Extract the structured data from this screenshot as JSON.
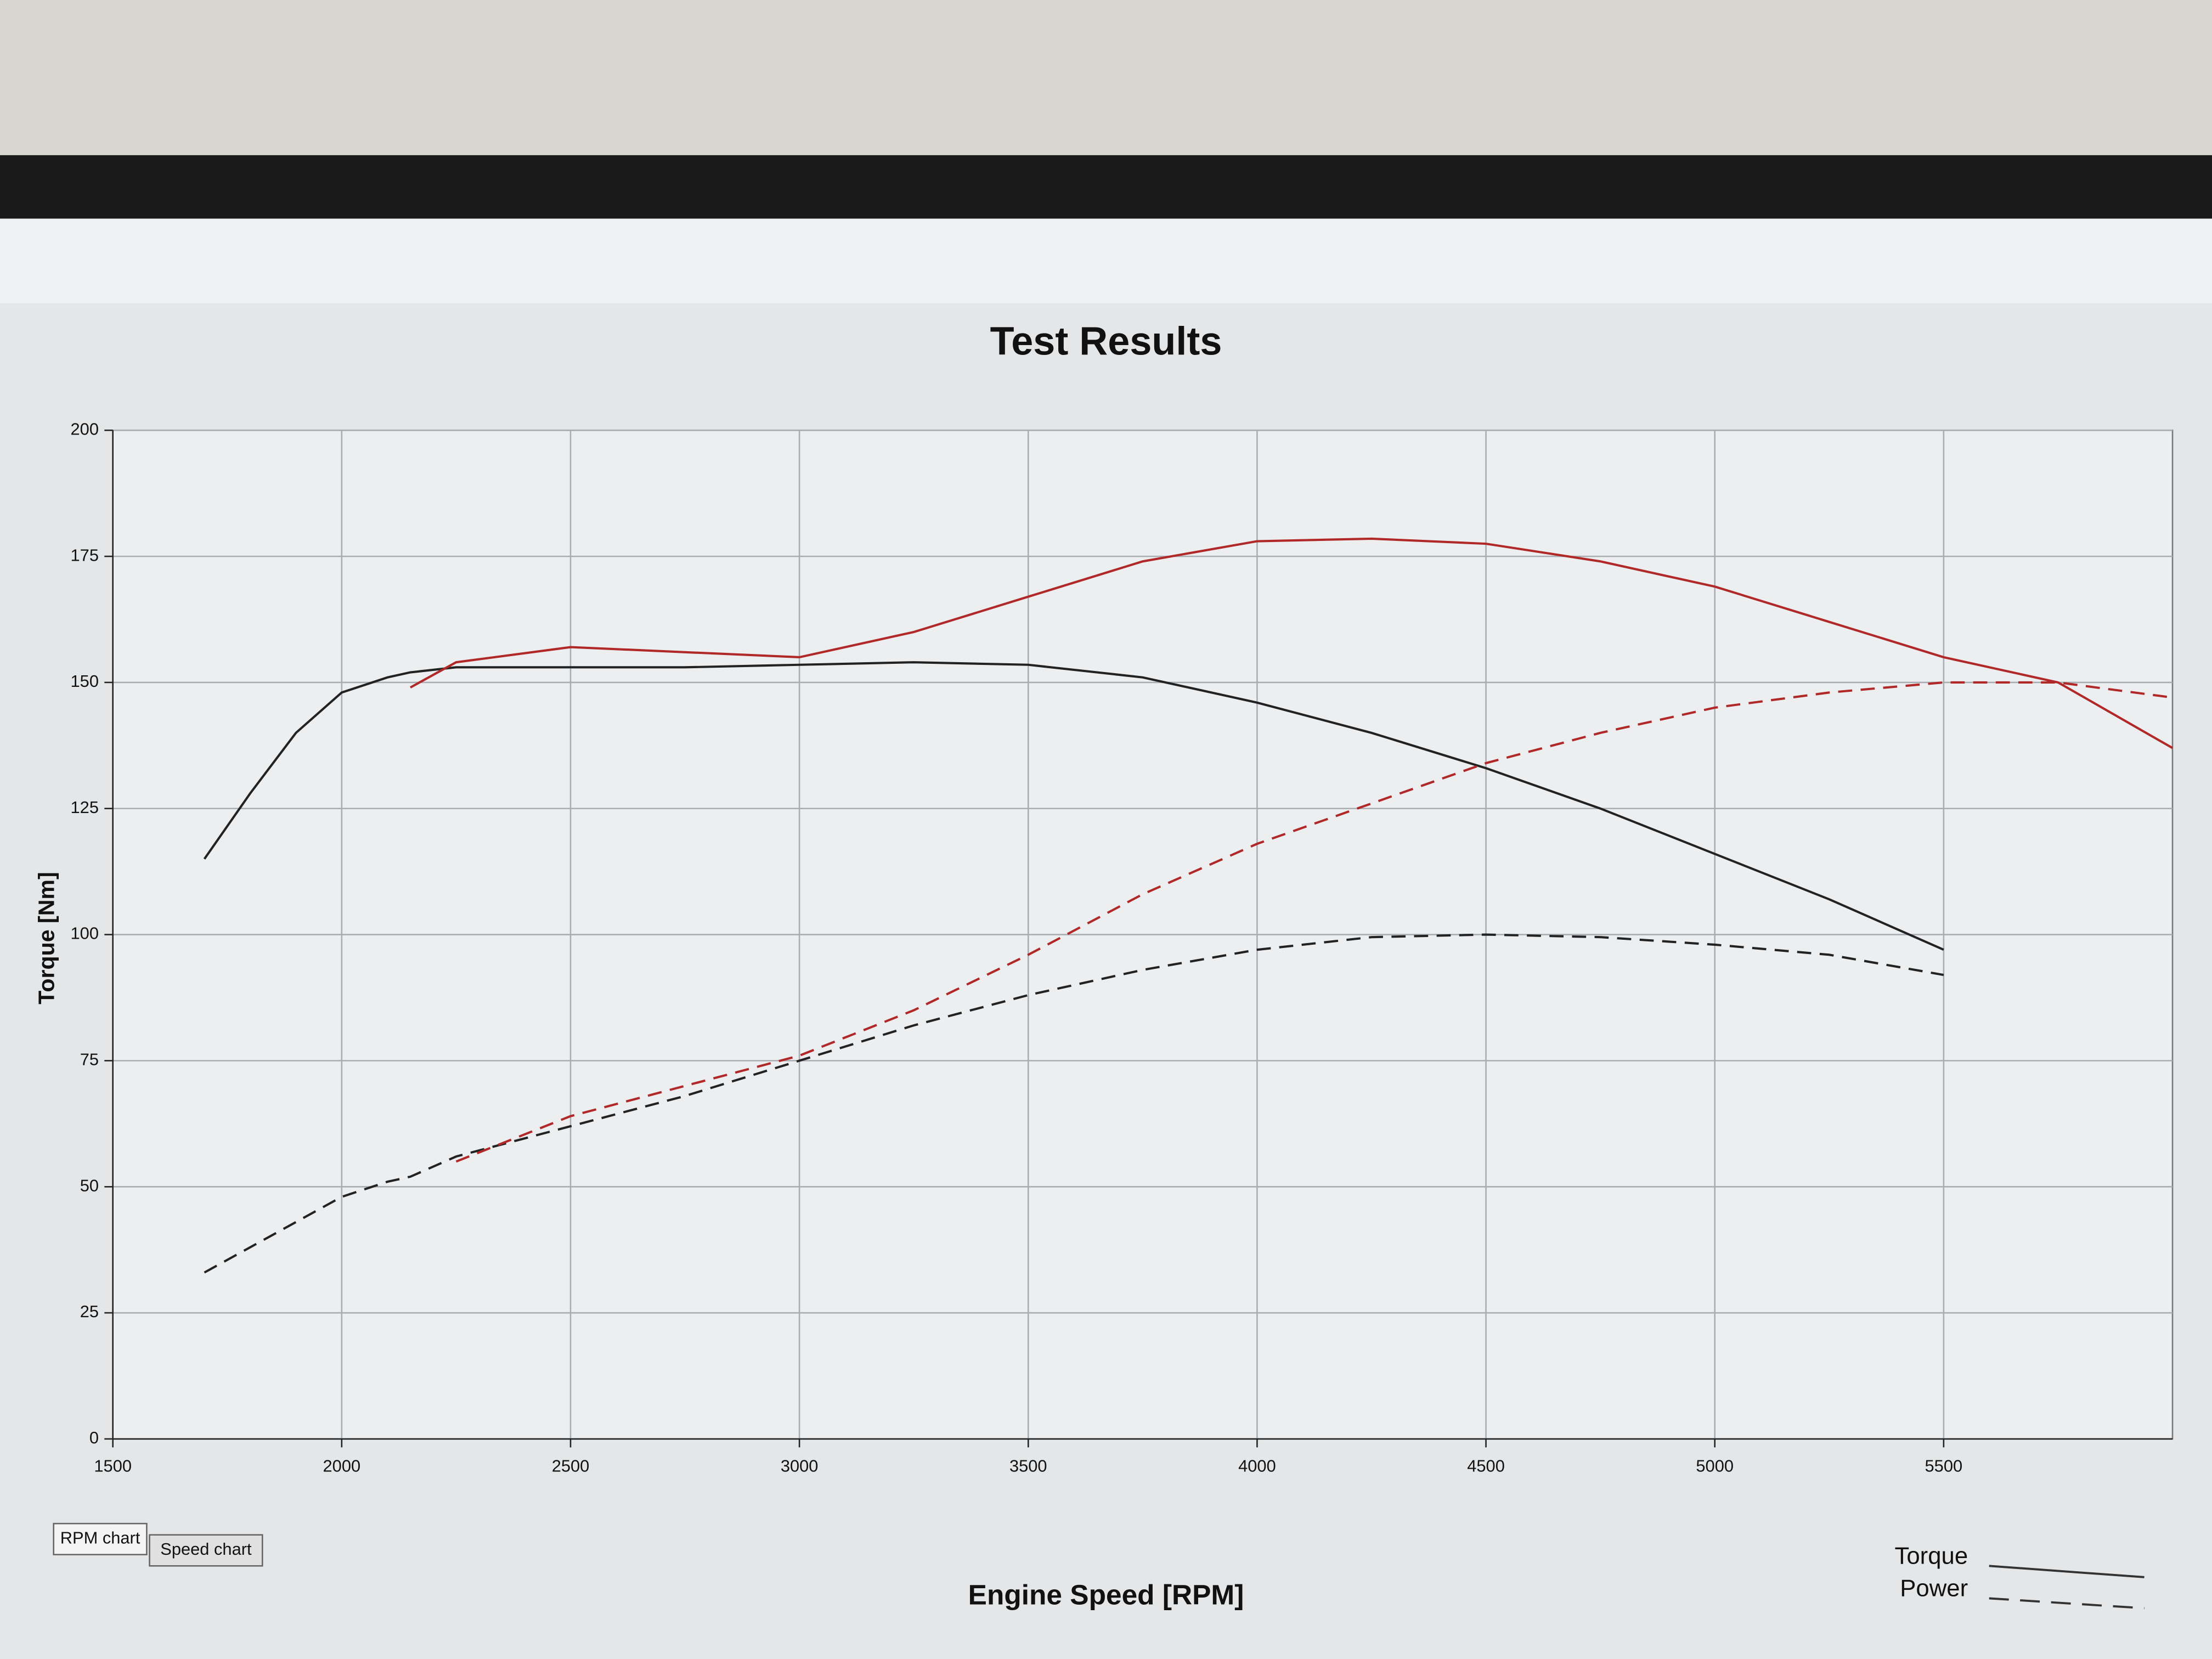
{
  "chart_data": {
    "type": "line",
    "title": "Test Results",
    "x_label": "Engine Speed [RPM]",
    "y_label": "Torque [Nm]",
    "x": [
      1700,
      1800,
      1900,
      2000,
      2100,
      2150,
      2250,
      2500,
      2750,
      3000,
      3250,
      3500,
      3750,
      4000,
      4250,
      4500,
      4750,
      5000,
      5250,
      5500,
      5750,
      6000
    ],
    "series": [
      {
        "color": "#222222",
        "dashed": false,
        "values": [
          115,
          128,
          140,
          148,
          151,
          152,
          153,
          153,
          153,
          153.5,
          154,
          153.5,
          151,
          146,
          140,
          133,
          125,
          116,
          107,
          97,
          null,
          null
        ]
      },
      {
        "color": "#222222",
        "dashed": true,
        "values": [
          33,
          38,
          43,
          48,
          51,
          52,
          56,
          62,
          68,
          75,
          82,
          88,
          93,
          97,
          99.5,
          100,
          99.5,
          98,
          96,
          92,
          null,
          null
        ]
      },
      {
        "color": "#b02828",
        "dashed": false,
        "values": [
          null,
          null,
          null,
          null,
          null,
          149,
          154,
          157,
          156,
          155,
          160,
          167,
          174,
          178,
          178.5,
          177.5,
          174,
          169,
          162,
          155,
          150,
          137
        ]
      },
      {
        "color": "#b02828",
        "dashed": true,
        "values": [
          null,
          null,
          null,
          null,
          null,
          null,
          55,
          64,
          70,
          76,
          85,
          96,
          108,
          118,
          126,
          134,
          140,
          145,
          148,
          150,
          150,
          147
        ]
      }
    ],
    "legend": [
      "Torque",
      "Power"
    ],
    "tabs": [
      "RPM chart",
      "Speed chart"
    ],
    "xlim": [
      1500,
      6000
    ],
    "xticks": [
      1500,
      2000,
      2500,
      3000,
      3500,
      4000,
      4500,
      5000,
      5500
    ],
    "ylim": [
      0,
      200
    ],
    "yticks": [
      0,
      25,
      50,
      75,
      100,
      125,
      150,
      175,
      200
    ],
    "grid": true
  }
}
